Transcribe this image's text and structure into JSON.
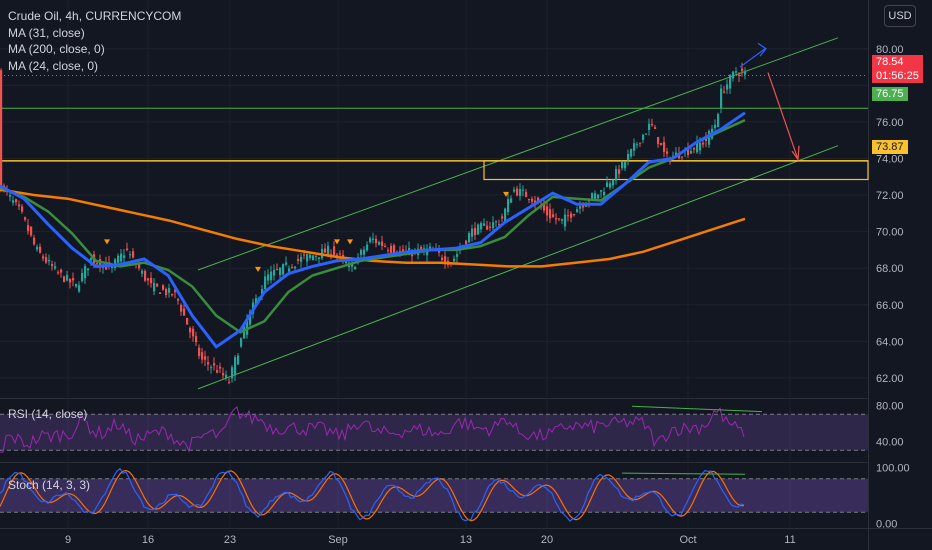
{
  "header": {
    "title": "Crude Oil, 4h, CURRENCYCOM",
    "indicators": [
      "MA (31, close)",
      "MA (200, close, 0)",
      "MA (24, close, 0)"
    ],
    "currency": "USD"
  },
  "price_tags": {
    "last": "78.54",
    "countdown": "01:56:25",
    "resistance": "76.75",
    "support": "73.87"
  },
  "rsi_label": "RSI (14, close)",
  "stoch_label": "Stoch (14, 3, 3)",
  "colors": {
    "background": "#131722",
    "up": "#26a69a",
    "down": "#ef5350",
    "ma31": "#2962ff",
    "ma200": "#f57c00",
    "ma24": "#388e3c",
    "channel": "#4caf50",
    "support_line": "#fbc02d",
    "rsi": "#9c27b0",
    "stoch_k": "#2962ff",
    "stoch_d": "#ff6d00"
  },
  "chart_data": [
    {
      "type": "candlestick",
      "title": "Crude Oil, 4h, CURRENCYCOM",
      "x_ticks": [
        "9",
        "16",
        "23",
        "Sep",
        "13",
        "20",
        "Oct",
        "11"
      ],
      "y_ticks": [
        "80.00",
        "76.00",
        "74.00",
        "72.00",
        "70.00",
        "68.00",
        "66.00",
        "64.00",
        "62.00"
      ],
      "ylim": [
        60.9,
        81.3
      ],
      "series": [
        {
          "name": "MA (31, close)",
          "values": [
            72.5,
            71.8,
            70.4,
            69.1,
            68.1,
            68.2,
            68.5,
            67.6,
            65.4,
            63.7,
            64.6,
            66.7,
            67.7,
            68.1,
            68.4,
            68.5,
            68.7,
            68.9,
            69.0,
            69.1,
            69.4,
            70.5,
            71.3,
            72.1,
            71.5,
            71.5,
            72.6,
            73.8,
            74.0,
            74.9,
            75.6,
            76.5
          ]
        },
        {
          "name": "MA (24, close, 0)",
          "values": [
            72.4,
            71.9,
            71.1,
            69.9,
            68.4,
            68.1,
            68.3,
            67.9,
            67.0,
            65.4,
            64.5,
            65.1,
            66.7,
            67.6,
            68.0,
            68.4,
            68.6,
            68.8,
            69.0,
            69.0,
            69.2,
            69.7,
            70.9,
            71.9,
            71.8,
            71.7,
            72.6,
            73.5,
            74.0,
            74.9,
            75.5,
            76.1
          ]
        },
        {
          "name": "MA (200, close, 0)",
          "values": [
            72.3,
            72.0,
            71.8,
            71.4,
            71.0,
            70.6,
            70.1,
            69.6,
            69.2,
            68.9,
            68.6,
            68.4,
            68.3,
            68.3,
            68.2,
            68.1,
            68.1,
            68.3,
            68.5,
            68.9,
            69.5,
            70.1,
            70.7
          ]
        }
      ],
      "horizontal_levels": [
        76.75,
        73.87,
        72.85
      ],
      "last_price": 78.54
    },
    {
      "type": "line",
      "title": "RSI (14, close)",
      "y_ticks": [
        "80.00",
        "40.00"
      ],
      "ylim": [
        17,
        87
      ],
      "bands": [
        70,
        30
      ]
    },
    {
      "type": "line",
      "title": "Stoch (14, 3, 3)",
      "y_ticks": [
        "100.00",
        "0.00"
      ],
      "ylim": [
        -8,
        108
      ],
      "bands": [
        80,
        20
      ]
    }
  ]
}
